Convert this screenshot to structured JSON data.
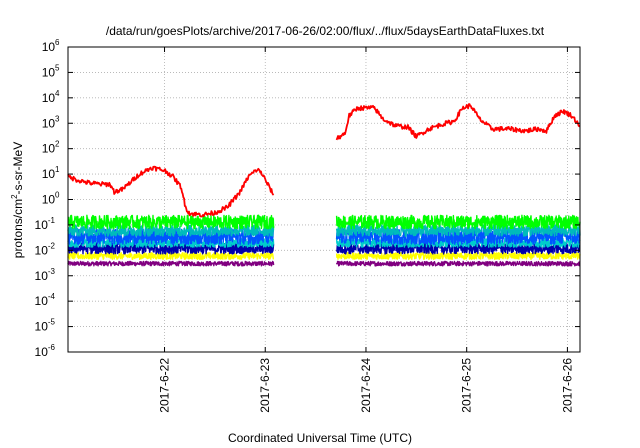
{
  "chart_data": {
    "type": "line",
    "title": "/data/run/goesPlots/archive/2017-06-26/02:00/flux/../flux/5daysEarthDataFluxes.txt",
    "xlabel": "Coordinated Universal Time (UTC)",
    "ylabel": {
      "pre": "protons/cm",
      "sup": "2",
      "post": "-s-sr-MeV"
    },
    "y_scale": "log",
    "ylim": [
      1e-06,
      1000000.0
    ],
    "xlim": [
      "2017-06-21T01:00Z",
      "2017-06-26T03:00Z"
    ],
    "y_ticks": [
      {
        "value": 1e-06,
        "base": "10",
        "exp": "-6"
      },
      {
        "value": 1e-05,
        "base": "10",
        "exp": "-5"
      },
      {
        "value": 0.0001,
        "base": "10",
        "exp": "-4"
      },
      {
        "value": 0.001,
        "base": "10",
        "exp": "-3"
      },
      {
        "value": 0.01,
        "base": "10",
        "exp": "-2"
      },
      {
        "value": 0.1,
        "base": "10",
        "exp": "-1"
      },
      {
        "value": 1.0,
        "base": "10",
        "exp": "0"
      },
      {
        "value": 10.0,
        "base": "10",
        "exp": "1"
      },
      {
        "value": 100.0,
        "base": "10",
        "exp": "2"
      },
      {
        "value": 1000.0,
        "base": "10",
        "exp": "3"
      },
      {
        "value": 10000.0,
        "base": "10",
        "exp": "4"
      },
      {
        "value": 100000.0,
        "base": "10",
        "exp": "5"
      },
      {
        "value": 1000000.0,
        "base": "10",
        "exp": "6"
      }
    ],
    "x_ticks": [
      {
        "value": "2017-06-22T00:00Z",
        "label": "2017-6-22"
      },
      {
        "value": "2017-06-23T00:00Z",
        "label": "2017-6-23"
      },
      {
        "value": "2017-06-24T00:00Z",
        "label": "2017-6-24"
      },
      {
        "value": "2017-06-25T00:00Z",
        "label": "2017-6-25"
      },
      {
        "value": "2017-06-26T00:00Z",
        "label": "2017-6-26"
      }
    ],
    "grid": true,
    "data_gap": [
      "2017-06-23T02:00Z",
      "2017-06-23T17:00Z"
    ],
    "series": [
      {
        "color": "#ff0000",
        "points": [
          [
            "2017-06-21T01:00Z",
            8
          ],
          [
            "2017-06-21T03:00Z",
            6
          ],
          [
            "2017-06-21T06:00Z",
            4.5
          ],
          [
            "2017-06-21T09:00Z",
            4
          ],
          [
            "2017-06-21T11:00Z",
            4
          ],
          [
            "2017-06-21T12:00Z",
            2
          ],
          [
            "2017-06-21T14:00Z",
            2.5
          ],
          [
            "2017-06-21T16:00Z",
            5
          ],
          [
            "2017-06-21T18:00Z",
            10
          ],
          [
            "2017-06-21T21:00Z",
            18
          ],
          [
            "2017-06-22T00:00Z",
            14
          ],
          [
            "2017-06-22T02:00Z",
            8
          ],
          [
            "2017-06-22T04:00Z",
            3
          ],
          [
            "2017-06-22T05:00Z",
            0.5
          ],
          [
            "2017-06-22T06:00Z",
            0.28
          ],
          [
            "2017-06-22T09:00Z",
            0.25
          ],
          [
            "2017-06-22T12:00Z",
            0.3
          ],
          [
            "2017-06-22T15:00Z",
            0.5
          ],
          [
            "2017-06-22T18:00Z",
            2
          ],
          [
            "2017-06-22T20:00Z",
            8
          ],
          [
            "2017-06-22T22:00Z",
            15
          ],
          [
            "2017-06-22T23:00Z",
            12
          ],
          [
            "2017-06-23T00:00Z",
            6
          ],
          [
            "2017-06-23T02:00Z",
            1.5
          ],
          [
            "2017-06-23T17:00Z",
            250
          ],
          [
            "2017-06-23T19:00Z",
            400
          ],
          [
            "2017-06-23T20:00Z",
            2000
          ],
          [
            "2017-06-23T22:00Z",
            4000
          ],
          [
            "2017-06-24T02:00Z",
            4000
          ],
          [
            "2017-06-24T04:00Z",
            1500
          ],
          [
            "2017-06-24T07:00Z",
            800
          ],
          [
            "2017-06-24T10:00Z",
            700
          ],
          [
            "2017-06-24T12:00Z",
            300
          ],
          [
            "2017-06-24T15:00Z",
            600
          ],
          [
            "2017-06-24T18:00Z",
            900
          ],
          [
            "2017-06-24T21:00Z",
            1200
          ],
          [
            "2017-06-24T23:00Z",
            4000
          ],
          [
            "2017-06-25T01:00Z",
            5000
          ],
          [
            "2017-06-25T03:00Z",
            1500
          ],
          [
            "2017-06-25T06:00Z",
            600
          ],
          [
            "2017-06-25T10:00Z",
            600
          ],
          [
            "2017-06-25T14:00Z",
            500
          ],
          [
            "2017-06-25T17:00Z",
            600
          ],
          [
            "2017-06-25T19:00Z",
            500
          ],
          [
            "2017-06-25T21:00Z",
            2000
          ],
          [
            "2017-06-25T23:00Z",
            3000
          ],
          [
            "2017-06-26T01:00Z",
            2000
          ],
          [
            "2017-06-26T03:00Z",
            800
          ]
        ]
      },
      {
        "color": "#00ff00",
        "level": 0.13,
        "spread": 0.12
      },
      {
        "color": "#00bbbb",
        "level": 0.06,
        "spread": 0.1
      },
      {
        "color": "#0055ff",
        "level": 0.035,
        "spread": 0.14
      },
      {
        "color": "#00cccc",
        "level": 0.02,
        "spread": 0.08
      },
      {
        "color": "#0000aa",
        "level": 0.012,
        "spread": 0.1
      },
      {
        "color": "#ffff00",
        "level": 0.006,
        "spread": 0.06
      },
      {
        "color": "#800080",
        "level": 0.003,
        "spread": 0.04
      }
    ]
  }
}
